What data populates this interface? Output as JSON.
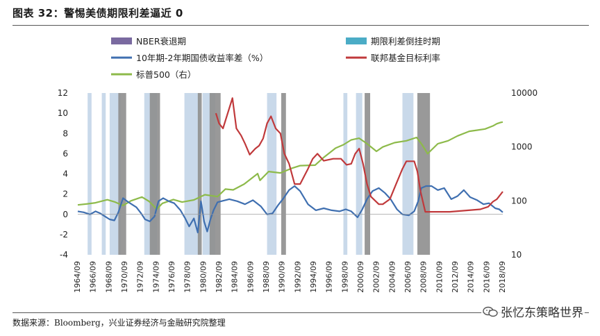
{
  "title": "图表 32：警惕美债期限利差逼近 0",
  "source": "数据来源：Bloomberg，兴业证券经济与金融研究院整理",
  "watermark": "张忆东策略世界",
  "colors": {
    "recession": "#8e8e8e",
    "recession_legend": "#7a6aa0",
    "inversion": "#c9d9ea",
    "inversion_legend": "#4bacc6",
    "spread": "#3f6fb0",
    "fedfunds": "#c0393b",
    "sp500": "#8dba4a"
  },
  "chart_data": {
    "type": "line",
    "legend": [
      {
        "key": "recession",
        "label": "NBER衰退期"
      },
      {
        "key": "inversion",
        "label": "期限利差倒挂时期"
      },
      {
        "key": "spread",
        "label": "10年期-2年期国债收益率差（%）"
      },
      {
        "key": "fedfunds",
        "label": "联邦基金目标利率"
      },
      {
        "key": "sp500",
        "label": "标普500（右）"
      }
    ],
    "legend_position": "top",
    "y_left": {
      "min": -4,
      "max": 12,
      "ticks": [
        "12",
        "10",
        "8",
        "6",
        "4",
        "2",
        "0",
        "-2",
        "-4"
      ]
    },
    "y_right": {
      "scale": "log",
      "min": 10,
      "max": 10000,
      "ticks": [
        "10000",
        "1000",
        "100",
        "10"
      ]
    },
    "x_range": [
      1964.75,
      2018.75
    ],
    "x_ticks": [
      "1964/09",
      "1966/09",
      "1968/09",
      "1970/09",
      "1972/09",
      "1974/09",
      "1976/09",
      "1978/09",
      "1980/09",
      "1982/09",
      "1984/09",
      "1986/09",
      "1988/09",
      "1990/09",
      "1992/09",
      "1994/09",
      "1996/09",
      "1998/09",
      "2000/09",
      "2002/09",
      "2004/09",
      "2006/09",
      "2008/09",
      "2010/09",
      "2012/09",
      "2014/09",
      "2016/09",
      "2018/09"
    ],
    "recessions": [
      [
        1969.9,
        1970.9
      ],
      [
        1973.9,
        1975.2
      ],
      [
        1980.0,
        1980.5
      ],
      [
        1981.5,
        1982.9
      ],
      [
        1990.6,
        1991.2
      ],
      [
        2001.2,
        2001.9
      ],
      [
        2007.9,
        2009.5
      ]
    ],
    "inversions": [
      [
        1966.0,
        1966.5
      ],
      [
        1967.8,
        1968.3
      ],
      [
        1968.8,
        1970.2
      ],
      [
        1973.2,
        1974.8
      ],
      [
        1978.3,
        1980.2
      ],
      [
        1980.6,
        1982.2
      ],
      [
        1988.8,
        1990.0
      ],
      [
        1998.5,
        1999.0
      ],
      [
        2000.1,
        2000.9
      ],
      [
        2006.0,
        2007.4
      ]
    ],
    "series": [
      {
        "name": "10年期-2年期国债收益率差（%）",
        "axis": "left",
        "x": [
          1964.75,
          1965.5,
          1966.3,
          1967.0,
          1967.6,
          1968.2,
          1968.8,
          1969.4,
          1969.9,
          1970.5,
          1971.0,
          1971.6,
          1972.2,
          1972.8,
          1973.3,
          1973.9,
          1974.5,
          1975.0,
          1975.6,
          1976.3,
          1977.0,
          1977.8,
          1978.4,
          1978.9,
          1979.5,
          1980.0,
          1980.4,
          1980.8,
          1981.2,
          1981.6,
          1982.0,
          1982.5,
          1983.0,
          1984.0,
          1985.0,
          1986.0,
          1987.0,
          1988.0,
          1988.8,
          1989.5,
          1990.2,
          1990.9,
          1991.6,
          1992.3,
          1993.0,
          1994.0,
          1995.0,
          1996.0,
          1997.0,
          1998.0,
          1998.8,
          1999.5,
          2000.3,
          2000.9,
          2001.5,
          2002.2,
          2003.0,
          2003.8,
          2004.5,
          2005.3,
          2006.0,
          2006.8,
          2007.5,
          2008.0,
          2008.4,
          2009.0,
          2009.7,
          2010.5,
          2011.3,
          2012.2,
          2013.0,
          2013.8,
          2014.6,
          2015.5,
          2016.3,
          2017.0,
          2017.8,
          2018.3,
          2018.75
        ],
        "values": [
          0.3,
          0.2,
          0.0,
          0.3,
          0.1,
          -0.2,
          -0.5,
          -0.6,
          0.2,
          1.6,
          1.3,
          1.0,
          0.7,
          0.1,
          -0.5,
          -0.7,
          -0.2,
          1.3,
          1.6,
          1.3,
          1.1,
          0.4,
          -0.4,
          -1.2,
          -0.4,
          -1.8,
          1.3,
          -0.7,
          -1.7,
          -0.5,
          0.4,
          1.2,
          1.3,
          1.5,
          1.3,
          1.0,
          1.4,
          0.8,
          0.0,
          0.1,
          0.9,
          1.6,
          2.4,
          2.8,
          2.3,
          1.0,
          0.4,
          0.6,
          0.4,
          0.3,
          0.5,
          0.3,
          -0.3,
          0.5,
          1.5,
          2.3,
          2.6,
          2.1,
          1.5,
          0.5,
          0.0,
          -0.1,
          0.3,
          1.3,
          2.6,
          2.8,
          2.8,
          2.4,
          2.6,
          1.5,
          1.8,
          2.4,
          1.7,
          1.4,
          1.0,
          1.1,
          0.6,
          0.5,
          0.2
        ]
      },
      {
        "name": "联邦基金目标利率",
        "axis": "left",
        "x": [
          1982.3,
          1982.7,
          1983.2,
          1984.0,
          1984.4,
          1984.9,
          1985.5,
          1986.0,
          1986.6,
          1987.3,
          1987.8,
          1988.3,
          1988.8,
          1989.3,
          1989.9,
          1990.5,
          1991.0,
          1991.6,
          1992.3,
          1993.0,
          1994.0,
          1994.6,
          1995.2,
          1996.0,
          1997.2,
          1998.2,
          1998.9,
          1999.5,
          2000.0,
          2000.5,
          2001.0,
          2001.5,
          2002.0,
          2003.0,
          2003.5,
          2004.4,
          2005.2,
          2006.0,
          2006.5,
          2007.5,
          2007.9,
          2008.3,
          2008.9,
          2009.5,
          2012.0,
          2015.9,
          2016.9,
          2017.5,
          2018.0,
          2018.75
        ],
        "values": [
          10.0,
          9.0,
          8.5,
          10.5,
          11.5,
          8.5,
          7.8,
          7.0,
          5.9,
          6.5,
          6.8,
          7.5,
          9.0,
          9.7,
          8.5,
          8.0,
          6.0,
          5.0,
          3.0,
          3.0,
          4.5,
          5.5,
          6.0,
          5.3,
          5.5,
          5.5,
          4.9,
          5.0,
          6.0,
          6.5,
          5.0,
          3.0,
          1.75,
          1.0,
          1.0,
          1.5,
          3.0,
          4.5,
          5.25,
          5.25,
          4.25,
          2.25,
          0.25,
          0.25,
          0.25,
          0.5,
          0.75,
          1.25,
          1.5,
          2.25
        ]
      },
      {
        "name": "标普500（右）",
        "axis": "right",
        "x": [
          1964.75,
          1966.0,
          1967.0,
          1968.5,
          1969.5,
          1970.5,
          1971.5,
          1972.9,
          1973.8,
          1974.8,
          1975.5,
          1976.9,
          1978.0,
          1979.5,
          1980.9,
          1982.5,
          1983.5,
          1984.5,
          1985.9,
          1987.6,
          1987.9,
          1989.0,
          1990.5,
          1991.9,
          1993.0,
          1994.9,
          1996.0,
          1997.5,
          1998.5,
          1999.5,
          2000.5,
          2001.5,
          2002.7,
          2003.5,
          2005.0,
          2006.5,
          2007.8,
          2008.5,
          2009.2,
          2010.5,
          2011.8,
          2013.0,
          2014.5,
          2015.5,
          2016.5,
          2017.5,
          2018.0,
          2018.5,
          2018.75
        ],
        "values": [
          84,
          88,
          92,
          105,
          95,
          82,
          100,
          118,
          98,
          70,
          90,
          106,
          95,
          104,
          130,
          120,
          165,
          160,
          205,
          320,
          240,
          350,
          330,
          400,
          450,
          460,
          640,
          950,
          1100,
          1350,
          1450,
          1150,
          830,
          1000,
          1200,
          1300,
          1500,
          1100,
          750,
          1150,
          1300,
          1600,
          1950,
          2050,
          2150,
          2450,
          2700,
          2850,
          2900
        ]
      }
    ]
  }
}
